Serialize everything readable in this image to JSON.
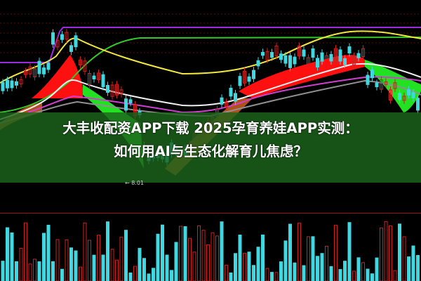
{
  "headline": {
    "line1": "大丰收配资APP下载 2025孕育养娃APP实测：",
    "line2": "如何用AI与生态化解育儿焦虑？"
  },
  "chart": {
    "low_price_label": "← 8.01",
    "colors": {
      "background": "#000000",
      "ma_purple": "#9a2be0",
      "ma_yellow": "#f2e640",
      "ma_green": "#35c82a",
      "ma_white": "#f0f0f0",
      "ma_magenta": "#d040d0",
      "band_red": "#ff1010",
      "band_green": "#22e022",
      "band_brown": "#b0501a",
      "candle_up": "#d02020",
      "candle_down": "#40d8e0"
    }
  }
}
